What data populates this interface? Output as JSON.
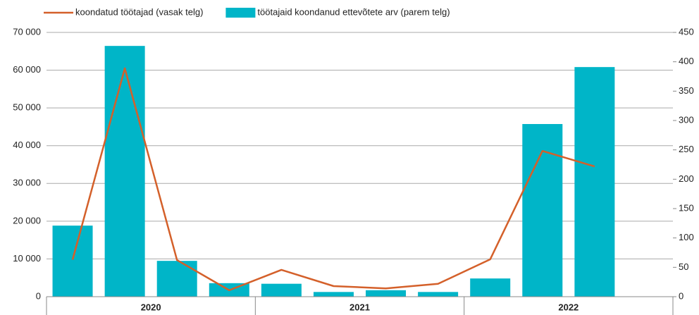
{
  "chart_data": {
    "type": "bar+line",
    "categories": [
      null,
      null,
      null,
      null,
      null,
      null,
      null,
      null,
      null,
      null,
      null,
      null
    ],
    "year_labels": [
      "2020",
      "2021",
      "2022"
    ],
    "series": [
      {
        "name": "koondatud töötajad (vasak telg)",
        "type": "line",
        "color": "#d4602a",
        "axis": "y",
        "values": [
          9800,
          60500,
          9700,
          1700,
          7100,
          2800,
          2200,
          3400,
          9900,
          38600,
          34500,
          null
        ]
      },
      {
        "name": "töötajaid koondanud ettevõtete arv (parem telg)",
        "type": "bar",
        "color": "#00b5c8",
        "axis": "y2",
        "values": [
          121,
          427,
          61,
          23,
          22,
          8,
          11,
          8,
          31,
          294,
          391,
          null
        ]
      }
    ],
    "ylim": [
      0,
      70000
    ],
    "yticks": [
      0,
      {
        "value": 10000,
        "label": "10 000"
      },
      {
        "value": 20000,
        "label": "20 000"
      },
      {
        "value": 30000,
        "label": "30 000"
      },
      {
        "value": 40000,
        "label": "40 000"
      },
      {
        "value": 50000,
        "label": "50 000"
      },
      {
        "value": 60000,
        "label": "60 000"
      },
      {
        "value": 70000,
        "label": "70 000"
      }
    ],
    "y2lim": [
      0,
      450
    ],
    "y2ticks": [
      0,
      50,
      100,
      150,
      200,
      250,
      300,
      350,
      400,
      450
    ],
    "grid": true
  }
}
